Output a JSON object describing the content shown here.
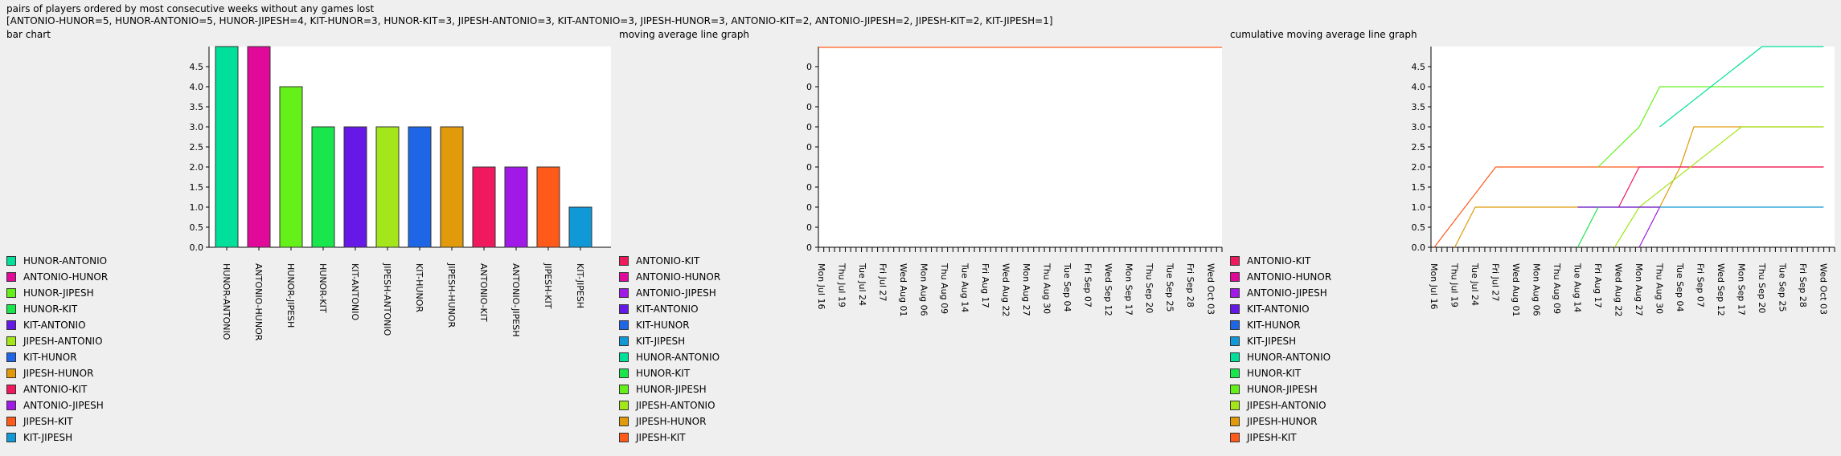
{
  "header": {
    "title": "pairs of players ordered by most consecutive weeks without any games lost",
    "summary": "[ANTONIO-HUNOR=5, HUNOR-ANTONIO=5, HUNOR-JIPESH=4, KIT-HUNOR=3, HUNOR-KIT=3, JIPESH-ANTONIO=3, KIT-ANTONIO=3, JIPESH-HUNOR=3, ANTONIO-KIT=2, ANTONIO-JIPESH=2, JIPESH-KIT=2, KIT-JIPESH=1]"
  },
  "colors": {
    "HUNOR-ANTONIO": "#00e09a",
    "ANTONIO-HUNOR": "#e0099a",
    "HUNOR-JIPESH": "#66f019",
    "HUNOR-KIT": "#19e64d",
    "KIT-ANTONIO": "#6619e6",
    "JIPESH-ANTONIO": "#a3e619",
    "KIT-HUNOR": "#1f66e6",
    "JIPESH-HUNOR": "#e09a0a",
    "ANTONIO-KIT": "#f0195e",
    "ANTONIO-JIPESH": "#a019e6",
    "JIPESH-KIT": "#ff5a19",
    "KIT-JIPESH": "#1099d6"
  },
  "chart_data": [
    {
      "type": "bar",
      "panel_label": "bar chart",
      "categories": [
        "HUNOR-ANTONIO",
        "ANTONIO-HUNOR",
        "HUNOR-JIPESH",
        "HUNOR-KIT",
        "KIT-ANTONIO",
        "JIPESH-ANTONIO",
        "KIT-HUNOR",
        "JIPESH-HUNOR",
        "ANTONIO-KIT",
        "ANTONIO-JIPESH",
        "JIPESH-KIT",
        "KIT-JIPESH"
      ],
      "values": [
        5,
        5,
        4,
        3,
        3,
        3,
        3,
        3,
        2,
        2,
        2,
        1
      ],
      "ylim": [
        0,
        5
      ],
      "y_ticks": [
        "0.0",
        "0.5",
        "1.0",
        "1.5",
        "2.0",
        "2.5",
        "3.0",
        "3.5",
        "4.0",
        "4.5"
      ],
      "legend": [
        "HUNOR-ANTONIO",
        "ANTONIO-HUNOR",
        "HUNOR-JIPESH",
        "HUNOR-KIT",
        "KIT-ANTONIO",
        "JIPESH-ANTONIO",
        "KIT-HUNOR",
        "JIPESH-HUNOR",
        "ANTONIO-KIT",
        "ANTONIO-JIPESH",
        "JIPESH-KIT",
        "KIT-JIPESH"
      ],
      "legend_placement": "left"
    },
    {
      "type": "line",
      "panel_label": "moving average line graph",
      "x_tick_labels": [
        "Mon Jul 16",
        "Thu Jul 19",
        "Tue Jul 24",
        "Fri Jul 27",
        "Wed Aug 01",
        "Mon Aug 06",
        "Thu Aug 09",
        "Tue Aug 14",
        "Fri Aug 17",
        "Wed Aug 22",
        "Mon Aug 27",
        "Thu Aug 30",
        "Tue Sep 04",
        "Fri Sep 07",
        "Wed Sep 12",
        "Mon Sep 17",
        "Thu Sep 20",
        "Tue Sep 25",
        "Fri Sep 28",
        "Wed Oct 03"
      ],
      "y_ticks": [
        "0",
        "0",
        "0",
        "0",
        "0",
        "0",
        "0",
        "0",
        "0",
        "0"
      ],
      "series": [
        {
          "name": "JIPESH-KIT",
          "values": "constant"
        }
      ],
      "legend": [
        "ANTONIO-KIT",
        "ANTONIO-HUNOR",
        "ANTONIO-JIPESH",
        "KIT-ANTONIO",
        "KIT-HUNOR",
        "KIT-JIPESH",
        "HUNOR-ANTONIO",
        "HUNOR-KIT",
        "HUNOR-JIPESH",
        "JIPESH-ANTONIO",
        "JIPESH-HUNOR",
        "JIPESH-KIT"
      ],
      "legend_placement": "left"
    },
    {
      "type": "line",
      "panel_label": "cumulative moving average line graph",
      "x_tick_labels": [
        "Mon Jul 16",
        "Thu Jul 19",
        "Tue Jul 24",
        "Fri Jul 27",
        "Wed Aug 01",
        "Mon Aug 06",
        "Thu Aug 09",
        "Tue Aug 14",
        "Fri Aug 17",
        "Wed Aug 22",
        "Mon Aug 27",
        "Thu Aug 30",
        "Tue Sep 04",
        "Fri Sep 07",
        "Wed Sep 12",
        "Mon Sep 17",
        "Thu Sep 20",
        "Tue Sep 25",
        "Fri Sep 28",
        "Wed Oct 03"
      ],
      "ylim": [
        0,
        5
      ],
      "y_ticks": [
        "0.0",
        "0.5",
        "1.0",
        "1.5",
        "2.0",
        "2.5",
        "3.0",
        "3.5",
        "4.0",
        "4.5"
      ],
      "series": [
        {
          "name": "JIPESH-KIT",
          "points": [
            [
              "Mon Jul 16",
              0
            ],
            [
              "Fri Jul 27",
              2
            ],
            [
              "Wed Oct 03",
              2
            ]
          ]
        },
        {
          "name": "JIPESH-HUNOR",
          "points": [
            [
              "Thu Jul 19",
              0
            ],
            [
              "Tue Jul 24",
              1
            ],
            [
              "Thu Aug 30",
              1
            ],
            [
              "Tue Sep 04",
              2
            ],
            [
              "Thu Sep 06",
              3
            ],
            [
              "Wed Oct 03",
              3
            ]
          ]
        },
        {
          "name": "ANTONIO-KIT",
          "points": [
            [
              "Wed Aug 22",
              1
            ],
            [
              "Mon Aug 27",
              2
            ],
            [
              "Wed Oct 03",
              2
            ]
          ]
        },
        {
          "name": "JIPESH-ANTONIO",
          "points": [
            [
              "Tue Aug 21",
              0
            ],
            [
              "Mon Aug 27",
              1
            ],
            [
              "Mon Sep 17",
              3
            ],
            [
              "Wed Oct 03",
              3
            ]
          ]
        },
        {
          "name": "HUNOR-JIPESH",
          "points": [
            [
              "Fri Aug 17",
              2
            ],
            [
              "Mon Aug 27",
              3
            ],
            [
              "Thu Aug 30",
              4
            ],
            [
              "Wed Oct 03",
              4
            ]
          ]
        },
        {
          "name": "KIT-ANTONIO",
          "points": [
            [
              "Tue Aug 14",
              1
            ],
            [
              "Thu Aug 30",
              1
            ]
          ]
        },
        {
          "name": "HUNOR-KIT",
          "points": [
            [
              "Tue Aug 14",
              0
            ],
            [
              "Fri Aug 17",
              1
            ]
          ]
        },
        {
          "name": "ANTONIO-JIPESH",
          "points": [
            [
              "Mon Aug 27",
              0
            ],
            [
              "Thu Aug 30",
              1
            ]
          ]
        },
        {
          "name": "KIT-JIPESH",
          "points": [
            [
              "Thu Aug 30",
              1
            ],
            [
              "Wed Oct 03",
              1
            ]
          ]
        },
        {
          "name": "HUNOR-ANTONIO",
          "points": [
            [
              "Thu Aug 30",
              3
            ],
            [
              "Thu Sep 20",
              5
            ],
            [
              "Wed Oct 03",
              5
            ]
          ]
        }
      ],
      "legend": [
        "ANTONIO-KIT",
        "ANTONIO-HUNOR",
        "ANTONIO-JIPESH",
        "KIT-ANTONIO",
        "KIT-HUNOR",
        "KIT-JIPESH",
        "HUNOR-ANTONIO",
        "HUNOR-KIT",
        "HUNOR-JIPESH",
        "JIPESH-ANTONIO",
        "JIPESH-HUNOR",
        "JIPESH-KIT"
      ],
      "legend_placement": "left"
    }
  ]
}
